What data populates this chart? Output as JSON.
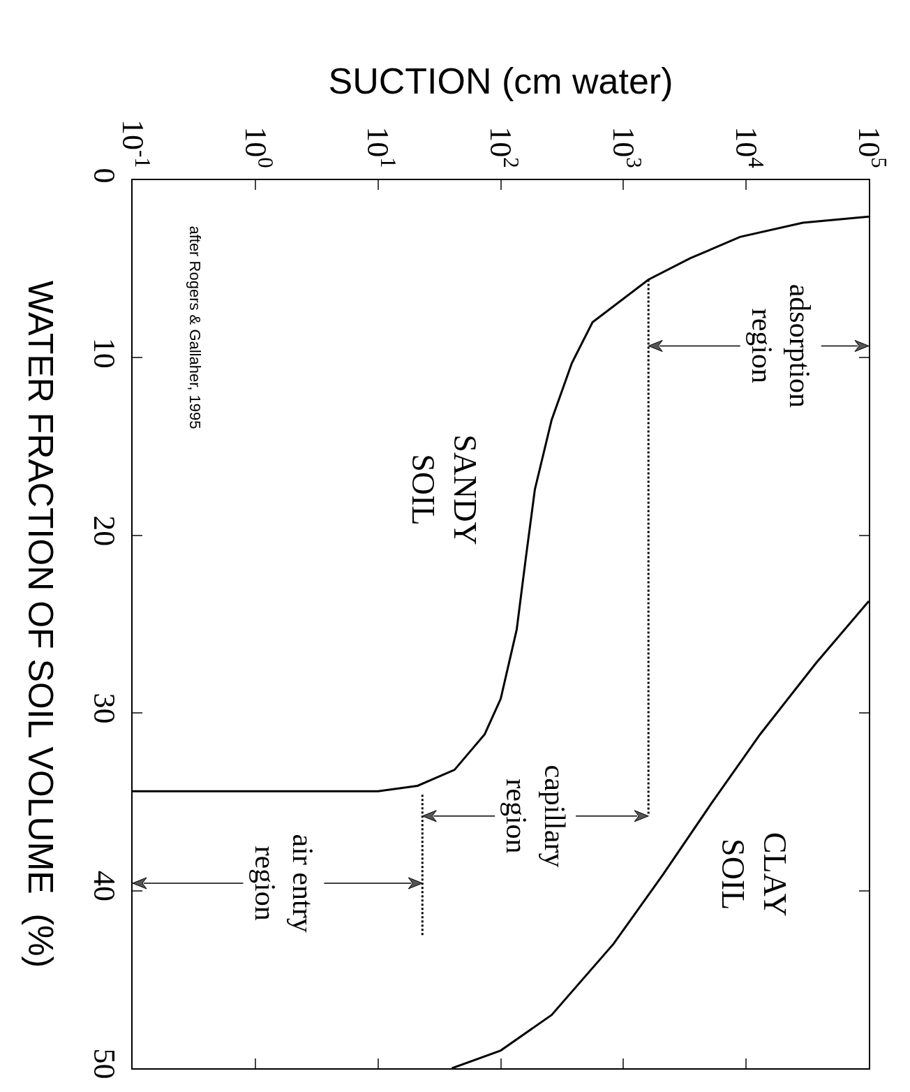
{
  "chart_data": {
    "type": "line",
    "xlabel": "SUCTION (cm water)",
    "ylabel": "WATER FRACTION OF SOIL VOLUME  (%)",
    "xlim": [
      0.1,
      100000
    ],
    "xticks": [
      {
        "value": 0.1,
        "label": "10$^{-1}$"
      },
      {
        "value": 1,
        "label": "10$^{0}$"
      },
      {
        "value": 10,
        "label": "10$^{1}$"
      },
      {
        "value": 100,
        "label": "10$^{2}$"
      },
      {
        "value": 1000,
        "label": "10$^{3}$"
      },
      {
        "value": 10000,
        "label": "10$^{4}$"
      },
      {
        "value": 100000,
        "label": "10$^{5}$"
      }
    ],
    "ylim": [
      50,
      0
    ],
    "yticks": [
      0,
      10,
      20,
      30,
      40,
      50
    ],
    "log": "x",
    "grid": false,
    "legend": false,
    "marker": "none",
    "series": [
      {
        "name": "SANDY\nSOIL",
        "color": "#000000",
        "x": [
          100000,
          29000,
          8900,
          3500,
          1600,
          560,
          380,
          260,
          190,
          160,
          135,
          100,
          74,
          42,
          21,
          10,
          0.1
        ],
        "values": [
          2.05,
          2.4,
          3.2,
          4.4,
          5.6,
          8,
          10.3,
          13.5,
          17.4,
          21.3,
          25.3,
          29.2,
          31.2,
          33.2,
          34.1,
          34.4,
          34.4
        ]
      },
      {
        "name": "CLAY\nSOIL",
        "color": "#000000",
        "x": [
          100000,
          37000,
          13000,
          5200,
          2100,
          830,
          260,
          100,
          40
        ],
        "values": [
          23.7,
          27.2,
          31.2,
          35.1,
          39.1,
          43,
          47,
          49,
          50
        ]
      },
      {
        "color": "#000000",
        "line_style": "dotted",
        "x": [
          1600,
          1600
        ],
        "values": [
          5.6,
          35.8
        ]
      },
      {
        "color": "#000000",
        "line_style": "dotted",
        "x": [
          23,
          23
        ],
        "values": [
          34.6,
          42.6
        ]
      }
    ],
    "annotations": [
      "adsorption\nregion",
      "capillary\nregion",
      "air entry\nregion",
      "after Rogers & Gallaher, 1995"
    ]
  }
}
